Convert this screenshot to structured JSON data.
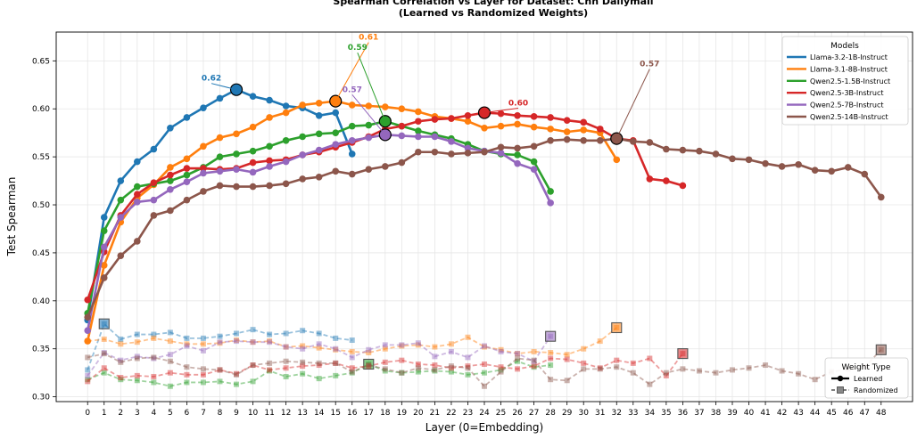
{
  "chart_data": {
    "type": "line",
    "title": "Spearman Correlation vs Layer for Dataset: Cnn Dailymail",
    "subtitle": "(Learned vs Randomized Weights)",
    "xlabel": "Layer (0=Embedding)",
    "ylabel": "Test Spearman",
    "xlim": [
      -1.9,
      49.9
    ],
    "ylim": [
      0.295,
      0.68
    ],
    "xticks": [
      0,
      1,
      2,
      3,
      4,
      5,
      6,
      7,
      8,
      9,
      10,
      11,
      12,
      13,
      14,
      15,
      16,
      17,
      18,
      19,
      20,
      21,
      22,
      23,
      24,
      25,
      26,
      27,
      28,
      29,
      30,
      31,
      32,
      33,
      34,
      35,
      36,
      37,
      38,
      39,
      40,
      41,
      42,
      43,
      44,
      45,
      46,
      47,
      48
    ],
    "yticks": [
      0.3,
      0.35,
      0.4,
      0.45,
      0.5,
      0.55,
      0.6,
      0.65
    ],
    "ytick_labels": [
      "0.30",
      "0.35",
      "0.40",
      "0.45",
      "0.50",
      "0.55",
      "0.60",
      "0.65"
    ],
    "grid": true,
    "legend_models_title": "Models",
    "legend_weight_title": "Weight Type",
    "legend_weight_items": [
      "Learned",
      "Randomized"
    ],
    "series": [
      {
        "name": "Llama-3.2-1B-Instruct",
        "color": "#1f77b4",
        "learned": [
          0.38,
          0.487,
          0.525,
          0.545,
          0.558,
          0.58,
          0.591,
          0.601,
          0.611,
          0.62,
          0.613,
          0.609,
          0.603,
          0.601,
          0.593,
          0.596,
          0.553
        ],
        "randomized": [
          0.328,
          0.376,
          0.36,
          0.365,
          0.365,
          0.367,
          0.361,
          0.361,
          0.363,
          0.366,
          0.37,
          0.365,
          0.366,
          0.369,
          0.366,
          0.361,
          0.359
        ],
        "peak_layer": 9,
        "peak_label": "0.62",
        "rand_marker_layer": 1,
        "rand_marker_value": 0.376
      },
      {
        "name": "Llama-3.1-8B-Instruct",
        "color": "#ff7f0e",
        "learned": [
          0.358,
          0.437,
          0.482,
          0.507,
          0.521,
          0.539,
          0.548,
          0.561,
          0.57,
          0.574,
          0.581,
          0.591,
          0.596,
          0.604,
          0.606,
          0.608,
          0.604,
          0.603,
          0.602,
          0.6,
          0.597,
          0.592,
          0.59,
          0.587,
          0.58,
          0.582,
          0.584,
          0.581,
          0.579,
          0.576,
          0.578,
          0.575,
          0.547
        ],
        "randomized": [
          0.358,
          0.36,
          0.355,
          0.357,
          0.361,
          0.358,
          0.355,
          0.355,
          0.356,
          0.359,
          0.357,
          0.358,
          0.352,
          0.353,
          0.351,
          0.349,
          0.347,
          0.346,
          0.35,
          0.353,
          0.354,
          0.352,
          0.355,
          0.362,
          0.352,
          0.349,
          0.345,
          0.347,
          0.346,
          0.344,
          0.35,
          0.358,
          0.372
        ],
        "peak_layer": 15,
        "peak_label": "0.61",
        "rand_marker_layer": 32,
        "rand_marker_value": 0.372
      },
      {
        "name": "Qwen2.5-1.5B-Instruct",
        "color": "#2ca02c",
        "learned": [
          0.387,
          0.473,
          0.505,
          0.519,
          0.522,
          0.525,
          0.531,
          0.539,
          0.55,
          0.553,
          0.556,
          0.561,
          0.567,
          0.571,
          0.574,
          0.575,
          0.582,
          0.583,
          0.587,
          0.582,
          0.577,
          0.573,
          0.569,
          0.563,
          0.556,
          0.553,
          0.552,
          0.545,
          0.514
        ],
        "randomized": [
          0.318,
          0.325,
          0.318,
          0.317,
          0.315,
          0.311,
          0.315,
          0.315,
          0.316,
          0.313,
          0.316,
          0.327,
          0.321,
          0.324,
          0.319,
          0.322,
          0.325,
          0.334,
          0.327,
          0.325,
          0.326,
          0.327,
          0.326,
          0.323,
          0.325,
          0.328,
          0.337,
          0.331,
          0.333
        ],
        "peak_layer": 18,
        "peak_label": "0.59",
        "rand_marker_layer": 17,
        "rand_marker_value": 0.334
      },
      {
        "name": "Qwen2.5-3B-Instruct",
        "color": "#d62728",
        "learned": [
          0.401,
          0.451,
          0.489,
          0.511,
          0.523,
          0.531,
          0.538,
          0.538,
          0.537,
          0.538,
          0.544,
          0.546,
          0.547,
          0.552,
          0.555,
          0.56,
          0.565,
          0.571,
          0.579,
          0.582,
          0.587,
          0.589,
          0.59,
          0.593,
          0.596,
          0.595,
          0.593,
          0.592,
          0.591,
          0.588,
          0.586,
          0.579,
          0.569,
          0.567,
          0.527,
          0.525,
          0.52
        ],
        "randomized": [
          0.316,
          0.33,
          0.32,
          0.322,
          0.321,
          0.325,
          0.323,
          0.323,
          0.328,
          0.324,
          0.333,
          0.328,
          0.33,
          0.332,
          0.333,
          0.335,
          0.33,
          0.332,
          0.336,
          0.338,
          0.334,
          0.333,
          0.33,
          0.332,
          0.334,
          0.331,
          0.329,
          0.332,
          0.34,
          0.339,
          0.335,
          0.33,
          0.338,
          0.335,
          0.34,
          0.322,
          0.345
        ],
        "peak_layer": 24,
        "peak_label": "0.60",
        "rand_marker_layer": 36,
        "rand_marker_value": 0.345
      },
      {
        "name": "Qwen2.5-7B-Instruct",
        "color": "#9467bd",
        "learned": [
          0.369,
          0.456,
          0.487,
          0.503,
          0.505,
          0.516,
          0.524,
          0.533,
          0.535,
          0.537,
          0.534,
          0.54,
          0.545,
          0.552,
          0.557,
          0.563,
          0.567,
          0.57,
          0.573,
          0.572,
          0.571,
          0.571,
          0.566,
          0.559,
          0.556,
          0.554,
          0.543,
          0.537,
          0.502
        ],
        "randomized": [
          0.322,
          0.346,
          0.338,
          0.342,
          0.34,
          0.344,
          0.353,
          0.348,
          0.357,
          0.358,
          0.357,
          0.357,
          0.352,
          0.35,
          0.355,
          0.35,
          0.341,
          0.349,
          0.354,
          0.354,
          0.356,
          0.342,
          0.347,
          0.341,
          0.353,
          0.347,
          0.345,
          0.337,
          0.363
        ],
        "peak_layer": 18,
        "peak_label": "0.57",
        "rand_marker_layer": 28,
        "rand_marker_value": 0.363
      },
      {
        "name": "Qwen2.5-14B-Instruct",
        "color": "#8c564b",
        "learned": [
          0.383,
          0.424,
          0.447,
          0.462,
          0.489,
          0.494,
          0.505,
          0.514,
          0.52,
          0.519,
          0.519,
          0.52,
          0.522,
          0.527,
          0.529,
          0.535,
          0.532,
          0.537,
          0.54,
          0.544,
          0.555,
          0.555,
          0.553,
          0.554,
          0.555,
          0.56,
          0.559,
          0.561,
          0.567,
          0.568,
          0.567,
          0.567,
          0.569,
          0.566,
          0.565,
          0.558,
          0.557,
          0.556,
          0.553,
          0.548,
          0.547,
          0.543,
          0.54,
          0.542,
          0.536,
          0.535,
          0.539,
          0.532,
          0.508
        ],
        "randomized": [
          0.341,
          0.345,
          0.336,
          0.34,
          0.341,
          0.337,
          0.331,
          0.329,
          0.328,
          0.323,
          0.333,
          0.335,
          0.337,
          0.336,
          0.335,
          0.335,
          0.326,
          0.333,
          0.329,
          0.325,
          0.33,
          0.328,
          0.332,
          0.33,
          0.311,
          0.326,
          0.34,
          0.338,
          0.318,
          0.317,
          0.329,
          0.329,
          0.331,
          0.325,
          0.313,
          0.325,
          0.329,
          0.327,
          0.325,
          0.328,
          0.33,
          0.333,
          0.327,
          0.324,
          0.318,
          0.326,
          0.329,
          0.331,
          0.349
        ],
        "peak_layer": 32,
        "peak_label": "0.57",
        "rand_marker_layer": 48,
        "rand_marker_value": 0.349
      }
    ]
  }
}
